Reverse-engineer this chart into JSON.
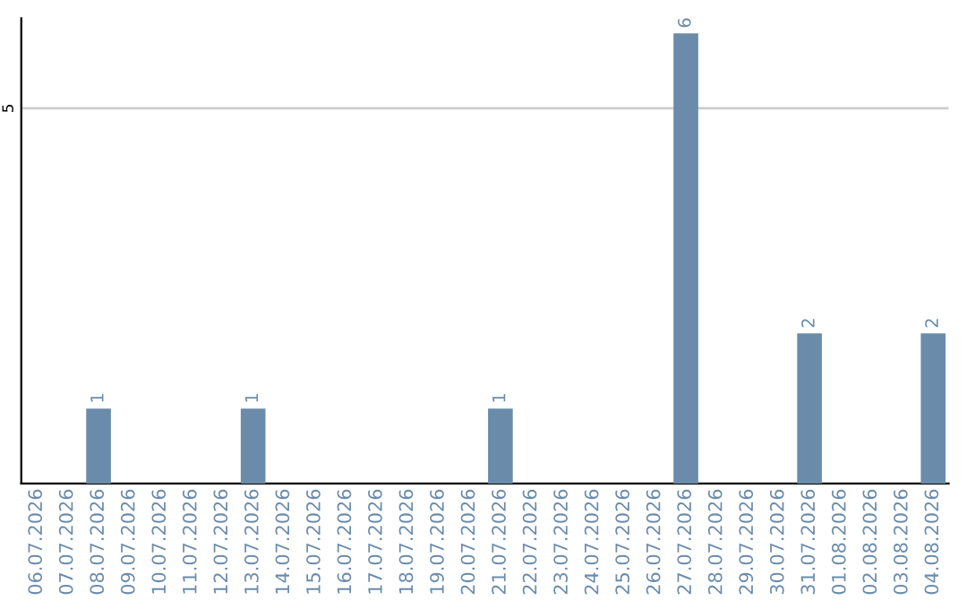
{
  "chart_data": {
    "type": "bar",
    "categories": [
      "06.07.2026",
      "07.07.2026",
      "08.07.2026",
      "09.07.2026",
      "10.07.2026",
      "11.07.2026",
      "12.07.2026",
      "13.07.2026",
      "14.07.2026",
      "15.07.2026",
      "16.07.2026",
      "17.07.2026",
      "18.07.2026",
      "19.07.2026",
      "20.07.2026",
      "21.07.2026",
      "22.07.2026",
      "23.07.2026",
      "24.07.2026",
      "25.07.2026",
      "26.07.2026",
      "27.07.2026",
      "28.07.2026",
      "29.07.2026",
      "30.07.2026",
      "31.07.2026",
      "01.08.2026",
      "02.08.2026",
      "03.08.2026",
      "04.08.2026"
    ],
    "values": [
      0,
      0,
      1,
      0,
      0,
      0,
      0,
      1,
      0,
      0,
      0,
      0,
      0,
      0,
      0,
      1,
      0,
      0,
      0,
      0,
      0,
      6,
      0,
      0,
      0,
      2,
      0,
      0,
      0,
      2
    ],
    "value_labels": [
      null,
      null,
      "1",
      null,
      null,
      null,
      null,
      "1",
      null,
      null,
      null,
      null,
      null,
      null,
      null,
      "1",
      null,
      null,
      null,
      null,
      null,
      "6",
      null,
      null,
      null,
      "2",
      null,
      null,
      null,
      "2"
    ],
    "color": "#6a8caa",
    "ylim": [
      0,
      6.2
    ],
    "yticks": [
      5
    ],
    "grid": "y"
  }
}
